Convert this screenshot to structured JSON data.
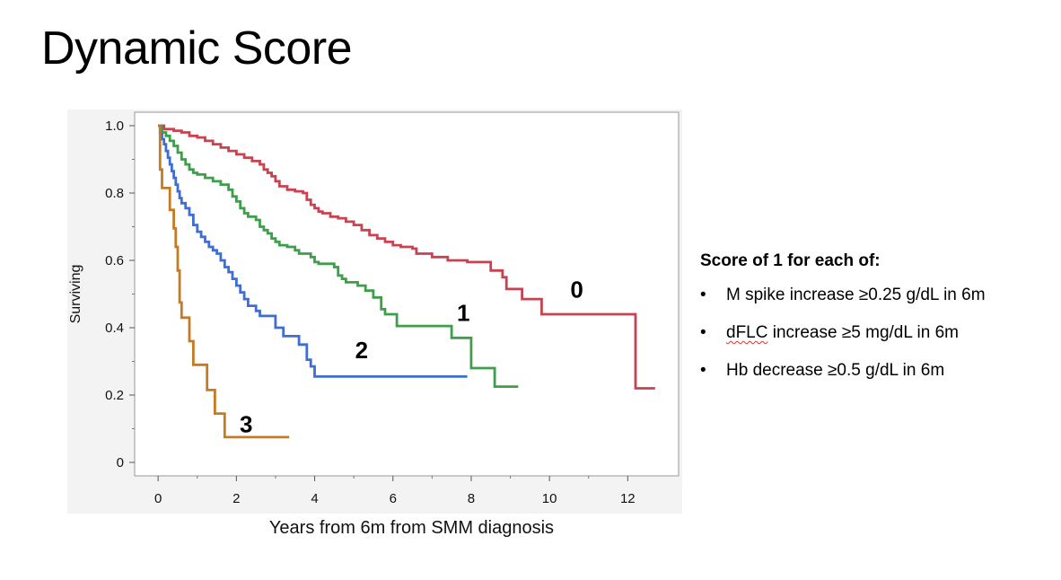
{
  "slide": {
    "title": "Dynamic Score"
  },
  "legend": {
    "heading": "Score of 1 for each of:",
    "items": [
      {
        "text": "M spike increase ≥0.25 g/dL in 6m",
        "squiggle": ""
      },
      {
        "squiggle": "dFLC",
        "text": " increase ≥5 mg/dL in 6m"
      },
      {
        "text": "Hb decrease ≥0.5 g/dL in 6m",
        "squiggle": ""
      }
    ]
  },
  "chart_data": {
    "type": "line",
    "subtype": "kaplan-meier step",
    "title": "",
    "xlabel": "Years from 6m from SMM diagnosis",
    "ylabel": "Surviving",
    "xlim": [
      -0.6,
      13.3
    ],
    "ylim": [
      -0.04,
      1.04
    ],
    "xticks": [
      0,
      2,
      4,
      6,
      8,
      10,
      12
    ],
    "xtick_labels": [
      "0",
      "2",
      "4",
      "6",
      "8",
      "10",
      "12"
    ],
    "yticks": [
      0,
      0.2,
      0.4,
      0.6,
      0.8,
      1.0
    ],
    "ytick_labels": [
      "0",
      "0.2",
      "0.4",
      "0.6",
      "0.8",
      "1.0"
    ],
    "grid": false,
    "series": [
      {
        "name": "0",
        "label": "0",
        "color": "#c8434f",
        "label_at": [
          10.7,
          0.49
        ],
        "points": [
          [
            0,
            1.0
          ],
          [
            0.15,
            0.99
          ],
          [
            0.4,
            0.985
          ],
          [
            0.6,
            0.98
          ],
          [
            0.8,
            0.97
          ],
          [
            1.0,
            0.965
          ],
          [
            1.2,
            0.955
          ],
          [
            1.4,
            0.945
          ],
          [
            1.6,
            0.935
          ],
          [
            1.8,
            0.925
          ],
          [
            2.0,
            0.915
          ],
          [
            2.2,
            0.905
          ],
          [
            2.4,
            0.895
          ],
          [
            2.6,
            0.885
          ],
          [
            2.7,
            0.87
          ],
          [
            2.8,
            0.86
          ],
          [
            2.9,
            0.85
          ],
          [
            3.0,
            0.835
          ],
          [
            3.1,
            0.82
          ],
          [
            3.3,
            0.81
          ],
          [
            3.5,
            0.805
          ],
          [
            3.7,
            0.8
          ],
          [
            3.8,
            0.78
          ],
          [
            3.9,
            0.765
          ],
          [
            4.0,
            0.755
          ],
          [
            4.1,
            0.745
          ],
          [
            4.2,
            0.74
          ],
          [
            4.4,
            0.73
          ],
          [
            4.6,
            0.725
          ],
          [
            4.8,
            0.715
          ],
          [
            5.0,
            0.705
          ],
          [
            5.2,
            0.69
          ],
          [
            5.4,
            0.675
          ],
          [
            5.6,
            0.665
          ],
          [
            5.8,
            0.655
          ],
          [
            6.0,
            0.645
          ],
          [
            6.2,
            0.64
          ],
          [
            6.5,
            0.635
          ],
          [
            6.6,
            0.62
          ],
          [
            7.0,
            0.61
          ],
          [
            7.4,
            0.6
          ],
          [
            7.9,
            0.595
          ],
          [
            8.5,
            0.57
          ],
          [
            8.8,
            0.55
          ],
          [
            8.9,
            0.515
          ],
          [
            9.3,
            0.485
          ],
          [
            9.8,
            0.44
          ],
          [
            12.2,
            0.22
          ],
          [
            12.7,
            0.22
          ]
        ]
      },
      {
        "name": "1",
        "label": "1",
        "color": "#3e9e49",
        "label_at": [
          7.8,
          0.42
        ],
        "points": [
          [
            0,
            1.0
          ],
          [
            0.1,
            0.98
          ],
          [
            0.2,
            0.97
          ],
          [
            0.3,
            0.955
          ],
          [
            0.4,
            0.94
          ],
          [
            0.5,
            0.92
          ],
          [
            0.6,
            0.9
          ],
          [
            0.7,
            0.885
          ],
          [
            0.8,
            0.87
          ],
          [
            0.9,
            0.86
          ],
          [
            1.0,
            0.855
          ],
          [
            1.2,
            0.845
          ],
          [
            1.4,
            0.835
          ],
          [
            1.6,
            0.825
          ],
          [
            1.8,
            0.81
          ],
          [
            1.9,
            0.79
          ],
          [
            2.0,
            0.775
          ],
          [
            2.1,
            0.755
          ],
          [
            2.2,
            0.74
          ],
          [
            2.3,
            0.73
          ],
          [
            2.5,
            0.72
          ],
          [
            2.6,
            0.7
          ],
          [
            2.7,
            0.69
          ],
          [
            2.8,
            0.68
          ],
          [
            2.9,
            0.665
          ],
          [
            3.0,
            0.655
          ],
          [
            3.1,
            0.645
          ],
          [
            3.3,
            0.64
          ],
          [
            3.5,
            0.63
          ],
          [
            3.6,
            0.62
          ],
          [
            3.9,
            0.61
          ],
          [
            4.0,
            0.595
          ],
          [
            4.1,
            0.59
          ],
          [
            4.5,
            0.58
          ],
          [
            4.6,
            0.555
          ],
          [
            4.7,
            0.545
          ],
          [
            4.8,
            0.535
          ],
          [
            5.1,
            0.525
          ],
          [
            5.3,
            0.51
          ],
          [
            5.5,
            0.49
          ],
          [
            5.7,
            0.455
          ],
          [
            5.8,
            0.44
          ],
          [
            6.0,
            0.44
          ],
          [
            6.1,
            0.405
          ],
          [
            7.0,
            0.405
          ],
          [
            7.5,
            0.37
          ],
          [
            8.0,
            0.28
          ],
          [
            8.6,
            0.225
          ],
          [
            9.2,
            0.225
          ]
        ]
      },
      {
        "name": "2",
        "label": "2",
        "color": "#3f6ed2",
        "label_at": [
          5.2,
          0.31
        ],
        "points": [
          [
            0,
            1.0
          ],
          [
            0.05,
            0.975
          ],
          [
            0.1,
            0.96
          ],
          [
            0.15,
            0.945
          ],
          [
            0.2,
            0.925
          ],
          [
            0.25,
            0.905
          ],
          [
            0.3,
            0.885
          ],
          [
            0.35,
            0.865
          ],
          [
            0.4,
            0.845
          ],
          [
            0.45,
            0.825
          ],
          [
            0.5,
            0.805
          ],
          [
            0.55,
            0.785
          ],
          [
            0.6,
            0.77
          ],
          [
            0.7,
            0.755
          ],
          [
            0.8,
            0.735
          ],
          [
            0.9,
            0.705
          ],
          [
            1.0,
            0.685
          ],
          [
            1.1,
            0.67
          ],
          [
            1.2,
            0.655
          ],
          [
            1.3,
            0.64
          ],
          [
            1.4,
            0.63
          ],
          [
            1.5,
            0.62
          ],
          [
            1.6,
            0.6
          ],
          [
            1.7,
            0.58
          ],
          [
            1.8,
            0.565
          ],
          [
            1.9,
            0.545
          ],
          [
            2.0,
            0.525
          ],
          [
            2.1,
            0.505
          ],
          [
            2.2,
            0.485
          ],
          [
            2.3,
            0.465
          ],
          [
            2.5,
            0.45
          ],
          [
            2.6,
            0.435
          ],
          [
            2.9,
            0.435
          ],
          [
            3.0,
            0.4
          ],
          [
            3.2,
            0.375
          ],
          [
            3.6,
            0.35
          ],
          [
            3.8,
            0.305
          ],
          [
            3.9,
            0.285
          ],
          [
            4.0,
            0.255
          ],
          [
            7.9,
            0.255
          ]
        ]
      },
      {
        "name": "3",
        "label": "3",
        "color": "#c57a24",
        "label_at": [
          2.25,
          0.09
        ],
        "points": [
          [
            0,
            1.0
          ],
          [
            0.05,
            0.87
          ],
          [
            0.1,
            0.815
          ],
          [
            0.3,
            0.75
          ],
          [
            0.4,
            0.695
          ],
          [
            0.45,
            0.64
          ],
          [
            0.5,
            0.57
          ],
          [
            0.55,
            0.475
          ],
          [
            0.6,
            0.43
          ],
          [
            0.8,
            0.36
          ],
          [
            0.9,
            0.29
          ],
          [
            1.25,
            0.215
          ],
          [
            1.45,
            0.145
          ],
          [
            1.7,
            0.075
          ],
          [
            3.35,
            0.075
          ]
        ]
      }
    ]
  }
}
